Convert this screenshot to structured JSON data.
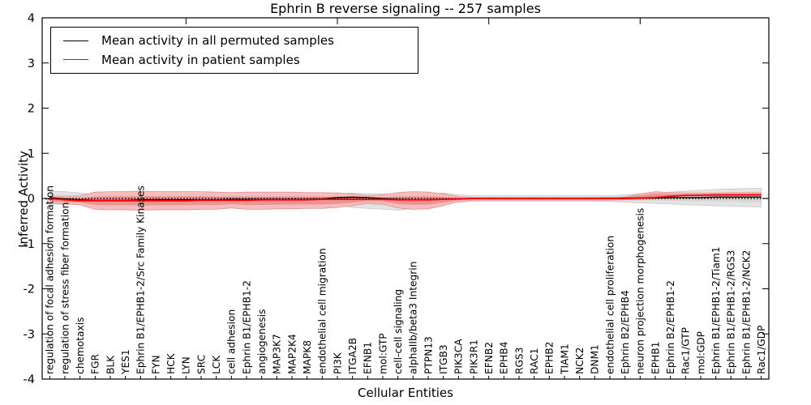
{
  "title": "Ephrin B reverse signaling -- 257 samples",
  "legend": {
    "items": [
      {
        "label": "Mean activity in all permuted samples",
        "color": "#000000",
        "line_width": 1.3
      },
      {
        "label": "Mean activity in patient samples",
        "color": "#ff0000",
        "line_width": 1.8
      }
    ]
  },
  "colors": {
    "permuted_line": "#000000",
    "patient_line": "#ff0000",
    "permuted_band_outer": "#e4e4e4",
    "permuted_band_inner": "#d7d7d7",
    "patient_band_outer": "#f5bdbd",
    "patient_band_inner": "#ec9494",
    "axis": "#000000"
  },
  "chart_data": {
    "type": "line",
    "title": "Ephrin B reverse signaling -- 257 samples",
    "xlabel": "Cellular Entities",
    "ylabel": "Inferred Activity",
    "ylim": [
      -4,
      4
    ],
    "yticks": [
      4,
      3,
      2,
      1,
      0,
      -1,
      -2,
      -3,
      -4
    ],
    "grid": false,
    "legend_position": "upper left",
    "zero_line": {
      "style": "dotted",
      "color": "#000000",
      "y": 0
    },
    "categories": [
      "regulation of focal adhesion formation",
      "regulation of stress fiber formation",
      "chemotaxis",
      "FGR",
      "BLK",
      "YES1",
      "Ephrin B1/EPHB1-2/Src Family Kinases",
      "FYN",
      "HCK",
      "LYN",
      "SRC",
      "LCK",
      "cell adhesion",
      "Ephrin B1/EPHB1-2",
      "angiogenesis",
      "MAP3K7",
      "MAP2K4",
      "MAPK8",
      "endothelial cell migration",
      "PI3K",
      "ITGA2B",
      "EFNB1",
      "mol:GTP",
      "cell-cell signaling",
      "alphaIIb/beta3 Integrin",
      "PTPN13",
      "ITGB3",
      "PIK3CA",
      "PIK3R1",
      "EFNB2",
      "EPHB4",
      "RGS3",
      "RAC1",
      "EPHB2",
      "TIAM1",
      "NCK2",
      "DNM1",
      "endothelial cell proliferation",
      "Ephrin B2/EPHB4",
      "neuron projection morphogenesis",
      "EPHB1",
      "Ephrin B2/EPHB1-2",
      "Rac1/GTP",
      "mol:GDP",
      "Ephrin B1/EPHB1-2/Tiam1",
      "Ephrin B1/EPHB1-2/RGS3",
      "Ephrin B1/EPHB1-2/NCK2",
      "Rac1/GDP"
    ],
    "series": [
      {
        "name": "Mean activity in all permuted samples",
        "color": "#000000",
        "values": [
          0.02,
          -0.01,
          -0.03,
          -0.04,
          -0.04,
          -0.04,
          -0.03,
          -0.03,
          -0.03,
          -0.03,
          -0.03,
          -0.03,
          -0.02,
          -0.02,
          -0.02,
          -0.02,
          -0.02,
          -0.02,
          -0.01,
          0.02,
          0.03,
          0.02,
          0.0,
          -0.02,
          -0.03,
          -0.03,
          -0.02,
          -0.01,
          0.0,
          0.0,
          0.0,
          0.0,
          0.0,
          0.0,
          0.0,
          0.0,
          0.0,
          0.0,
          0.01,
          0.01,
          0.01,
          0.02,
          0.02,
          0.02,
          0.03,
          0.03,
          0.03,
          0.03
        ]
      },
      {
        "name": "Mean activity in patient samples",
        "color": "#ff0000",
        "values": [
          0.0,
          -0.03,
          -0.05,
          -0.05,
          -0.05,
          -0.05,
          -0.05,
          -0.05,
          -0.05,
          -0.05,
          -0.04,
          -0.04,
          -0.04,
          -0.04,
          -0.03,
          -0.03,
          -0.03,
          -0.03,
          -0.02,
          -0.02,
          -0.02,
          -0.02,
          -0.02,
          -0.03,
          -0.03,
          -0.03,
          -0.02,
          -0.01,
          0.0,
          0.0,
          0.0,
          0.0,
          0.0,
          0.0,
          0.0,
          0.0,
          0.0,
          0.0,
          0.0,
          0.01,
          0.02,
          0.05,
          0.07,
          0.07,
          0.08,
          0.08,
          0.08,
          0.08
        ]
      }
    ],
    "bands": [
      {
        "name": "permuted samples range",
        "fill": "#e4e4e4",
        "inner_fill": "#d7d7d7",
        "edge": "#c9c9c9",
        "upper": [
          0.16,
          0.15,
          0.12,
          0.08,
          0.06,
          0.06,
          0.06,
          0.06,
          0.06,
          0.06,
          0.06,
          0.06,
          0.06,
          0.06,
          0.06,
          0.06,
          0.06,
          0.06,
          0.07,
          0.1,
          0.12,
          0.1,
          0.1,
          0.08,
          0.06,
          0.1,
          0.12,
          0.08,
          0.06,
          0.06,
          0.06,
          0.06,
          0.06,
          0.06,
          0.06,
          0.06,
          0.06,
          0.06,
          0.08,
          0.1,
          0.12,
          0.14,
          0.16,
          0.18,
          0.2,
          0.21,
          0.22,
          0.23
        ],
        "lower": [
          -0.13,
          -0.13,
          -0.12,
          -0.1,
          -0.08,
          -0.08,
          -0.08,
          -0.08,
          -0.08,
          -0.08,
          -0.08,
          -0.08,
          -0.08,
          -0.08,
          -0.08,
          -0.08,
          -0.08,
          -0.08,
          -0.1,
          -0.14,
          -0.2,
          -0.22,
          -0.24,
          -0.26,
          -0.22,
          -0.14,
          -0.1,
          -0.08,
          -0.06,
          -0.06,
          -0.06,
          -0.06,
          -0.06,
          -0.06,
          -0.06,
          -0.06,
          -0.06,
          -0.07,
          -0.08,
          -0.1,
          -0.11,
          -0.12,
          -0.14,
          -0.15,
          -0.16,
          -0.17,
          -0.18,
          -0.19
        ]
      },
      {
        "name": "patient samples range",
        "fill": "#f5bdbd",
        "inner_fill": "#ec9494",
        "edge": "#e48f8f",
        "upper": [
          0.04,
          0.04,
          0.06,
          0.14,
          0.15,
          0.15,
          0.16,
          0.15,
          0.15,
          0.15,
          0.15,
          0.14,
          0.13,
          0.14,
          0.14,
          0.14,
          0.14,
          0.13,
          0.13,
          0.12,
          0.1,
          0.06,
          0.08,
          0.13,
          0.15,
          0.14,
          0.1,
          0.04,
          0.02,
          0.02,
          0.02,
          0.02,
          0.02,
          0.02,
          0.02,
          0.02,
          0.02,
          0.03,
          0.03,
          0.1,
          0.15,
          0.13,
          0.12,
          0.12,
          0.12,
          0.13,
          0.13,
          0.13
        ],
        "lower": [
          -0.1,
          -0.12,
          -0.14,
          -0.24,
          -0.25,
          -0.25,
          -0.26,
          -0.25,
          -0.25,
          -0.25,
          -0.24,
          -0.24,
          -0.21,
          -0.24,
          -0.24,
          -0.23,
          -0.23,
          -0.22,
          -0.22,
          -0.2,
          -0.16,
          -0.1,
          -0.12,
          -0.21,
          -0.24,
          -0.23,
          -0.16,
          -0.07,
          -0.04,
          -0.04,
          -0.04,
          -0.04,
          -0.04,
          -0.04,
          -0.04,
          -0.04,
          -0.04,
          -0.04,
          -0.03,
          -0.02,
          0.0,
          0.01,
          0.02,
          0.03,
          0.03,
          0.03,
          0.03,
          0.04
        ]
      }
    ]
  }
}
